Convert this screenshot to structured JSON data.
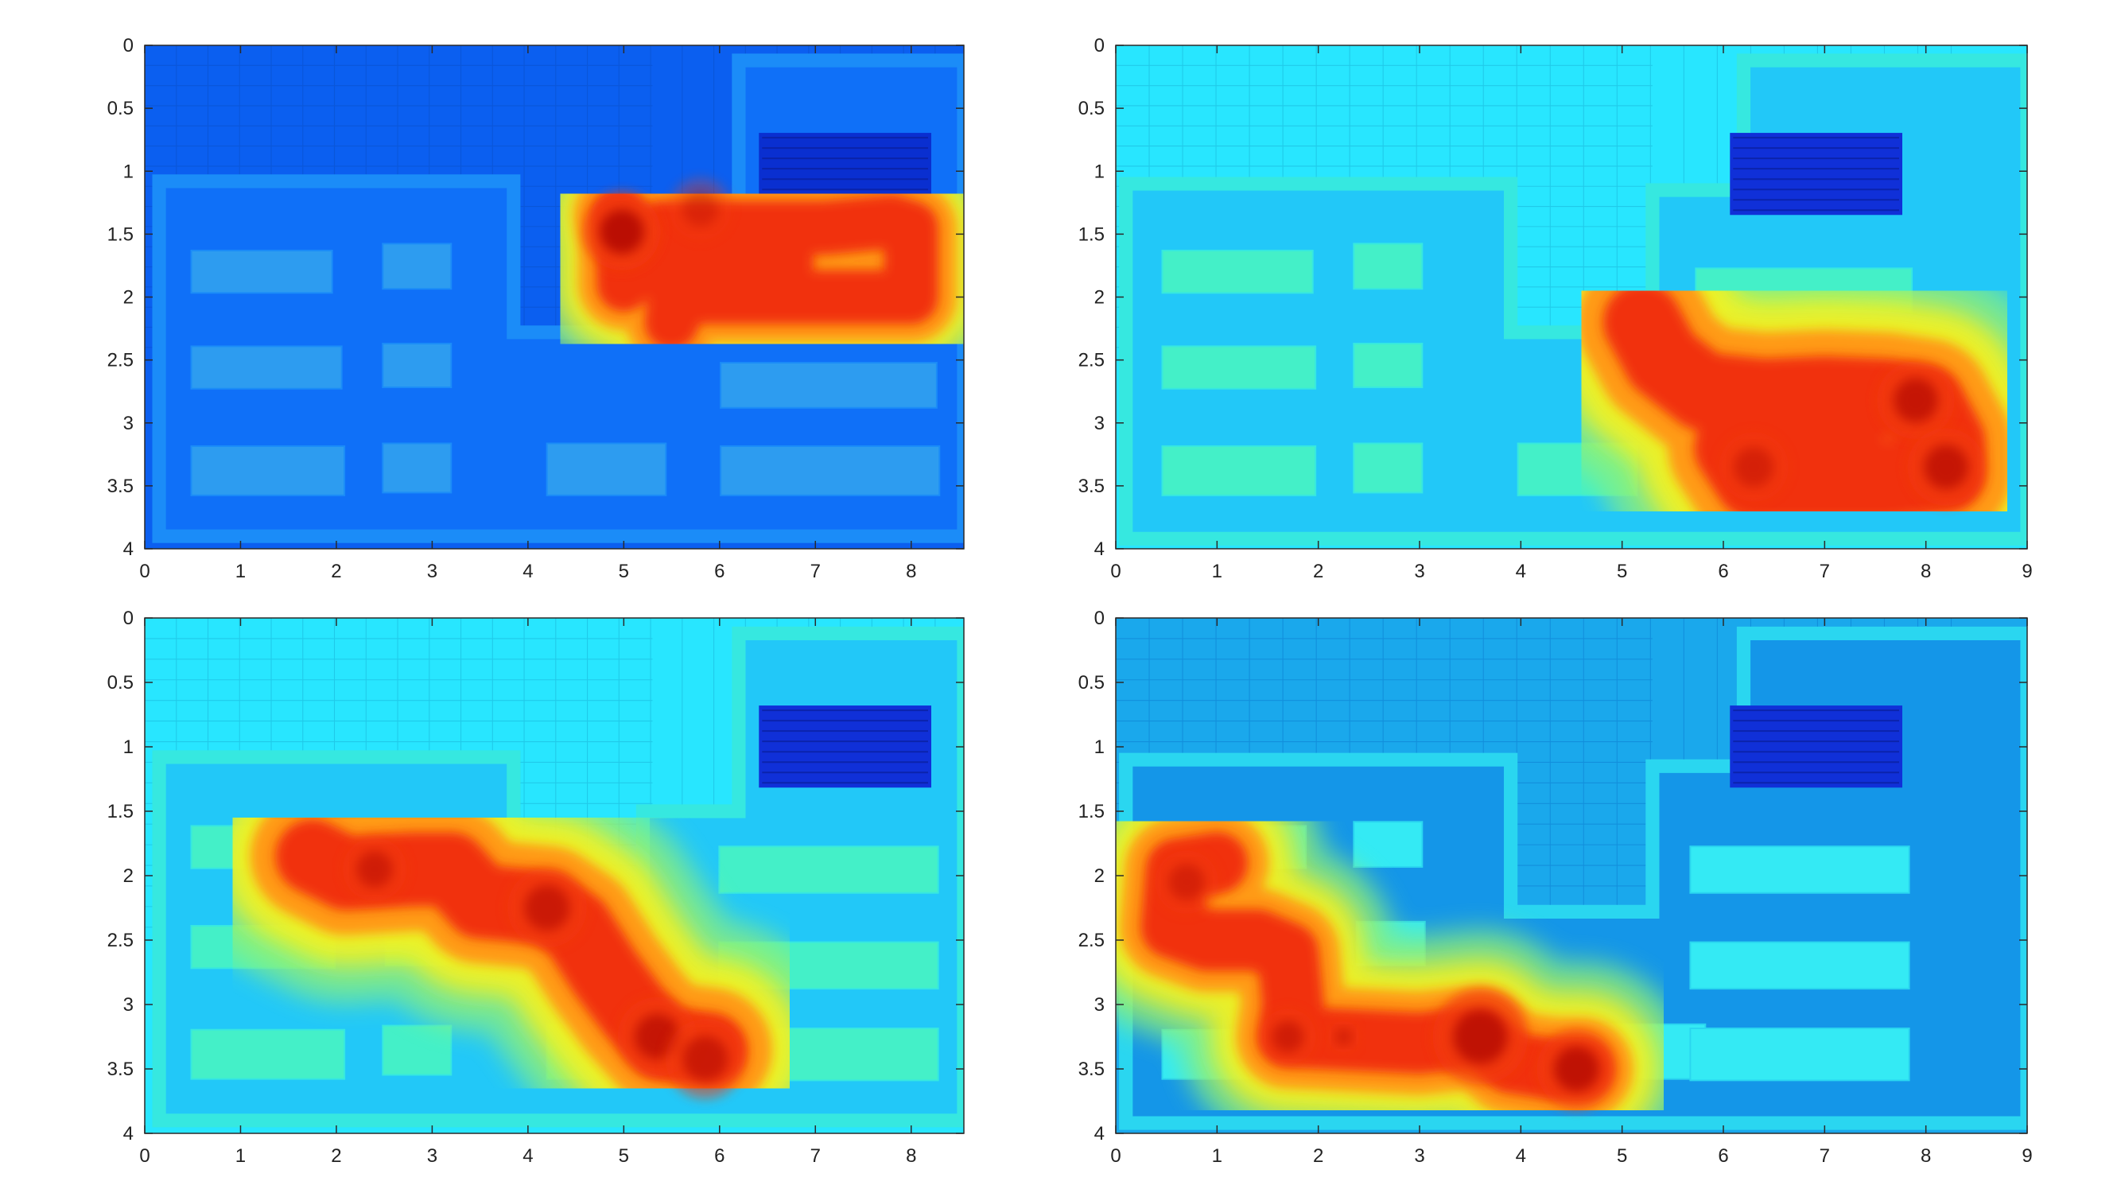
{
  "chart_data": [
    {
      "type": "heatmap",
      "panel": "top-left",
      "title": "",
      "xlabel": "",
      "ylabel": "",
      "xlim": [
        0,
        8.55
      ],
      "ylim": [
        4,
        0
      ],
      "xticks": [
        0,
        1,
        2,
        3,
        4,
        5,
        6,
        7,
        8
      ],
      "yticks": [
        0,
        0.5,
        1,
        1.5,
        2,
        2.5,
        3,
        3.5,
        4
      ],
      "xtick_labels": [
        "0",
        "1",
        "2",
        "3",
        "4",
        "5",
        "6",
        "7",
        "8"
      ],
      "ytick_labels": [
        "0",
        "0.5",
        "1",
        "1.5",
        "2",
        "2.5",
        "3",
        "3.5",
        "4"
      ],
      "theme": {
        "bg": "#0b5ff0",
        "room": "#0f70f8",
        "border": "#1b8cf8",
        "box": "#2d9cf0",
        "grid": "#0a4fc8",
        "shelf": "#0a2fd0"
      },
      "path": [
        [
          4.95,
          1.35
        ],
        [
          5.0,
          1.6
        ],
        [
          5.0,
          1.9
        ],
        [
          5.4,
          1.45
        ],
        [
          6.0,
          1.45
        ],
        [
          6.5,
          1.45
        ],
        [
          7.1,
          1.45
        ],
        [
          7.8,
          1.4
        ],
        [
          8.0,
          1.45
        ],
        [
          8.0,
          1.7
        ],
        [
          8.0,
          2.0
        ],
        [
          7.3,
          2.0
        ],
        [
          6.6,
          2.0
        ],
        [
          6.0,
          2.0
        ],
        [
          5.6,
          2.0
        ],
        [
          5.5,
          2.2
        ],
        [
          5.6,
          1.7
        ],
        [
          6.2,
          1.72
        ],
        [
          6.7,
          1.72
        ]
      ],
      "path_width": 0.09,
      "hotspots": [
        [
          4.98,
          1.48,
          0.1,
          1.0
        ],
        [
          5.8,
          1.3,
          0.08,
          0.4
        ]
      ]
    },
    {
      "type": "heatmap",
      "panel": "top-right",
      "title": "",
      "xlabel": "",
      "ylabel": "",
      "xlim": [
        0,
        9
      ],
      "ylim": [
        4,
        0
      ],
      "xticks": [
        0,
        1,
        2,
        3,
        4,
        5,
        6,
        7,
        8,
        9
      ],
      "yticks": [
        0,
        0.5,
        1,
        1.5,
        2,
        2.5,
        3,
        3.5,
        4
      ],
      "xtick_labels": [
        "0",
        "1",
        "2",
        "3",
        "4",
        "5",
        "6",
        "7",
        "8",
        "9"
      ],
      "ytick_labels": [
        "0",
        "0.5",
        "1",
        "1.5",
        "2",
        "2.5",
        "3",
        "3.5",
        "4"
      ],
      "theme": {
        "bg": "#28e6ff",
        "room": "#22c8f8",
        "border": "#36e8e0",
        "box": "#44f0c8",
        "grid": "#1ab4d8",
        "shelf": "#1030d8"
      },
      "path": [
        [
          5.2,
          2.2
        ],
        [
          5.4,
          2.5
        ],
        [
          5.8,
          2.75
        ],
        [
          6.4,
          2.8
        ],
        [
          7.0,
          2.78
        ],
        [
          7.6,
          2.8
        ],
        [
          8.0,
          2.85
        ],
        [
          8.2,
          3.15
        ],
        [
          8.2,
          3.4
        ],
        [
          7.6,
          3.45
        ],
        [
          7.0,
          3.45
        ],
        [
          6.3,
          3.45
        ],
        [
          6.1,
          3.2
        ],
        [
          6.6,
          3.15
        ],
        [
          7.2,
          3.15
        ]
      ],
      "path_width": 0.13,
      "hotspots": [
        [
          7.9,
          2.82,
          0.1,
          0.8
        ],
        [
          8.2,
          3.35,
          0.1,
          0.8
        ],
        [
          6.3,
          3.35,
          0.09,
          0.5
        ]
      ]
    },
    {
      "type": "heatmap",
      "panel": "bottom-left",
      "title": "",
      "xlabel": "",
      "ylabel": "",
      "xlim": [
        0,
        8.55
      ],
      "ylim": [
        4,
        0
      ],
      "xticks": [
        0,
        1,
        2,
        3,
        4,
        5,
        6,
        7,
        8
      ],
      "yticks": [
        0,
        0.5,
        1,
        1.5,
        2,
        2.5,
        3,
        3.5,
        4
      ],
      "xtick_labels": [
        "0",
        "1",
        "2",
        "3",
        "4",
        "5",
        "6",
        "7",
        "8"
      ],
      "ytick_labels": [
        "0",
        "0.5",
        "1",
        "1.5",
        "2",
        "2.5",
        "3",
        "3.5",
        "4"
      ],
      "theme": {
        "bg": "#28e6ff",
        "room": "#22c8f8",
        "border": "#36e8e0",
        "box": "#44f0c8",
        "grid": "#1ab4d8",
        "shelf": "#1030d8"
      },
      "path": [
        [
          1.75,
          1.85
        ],
        [
          2.1,
          1.98
        ],
        [
          2.8,
          1.95
        ],
        [
          3.2,
          1.95
        ],
        [
          3.5,
          2.2
        ],
        [
          4.2,
          2.25
        ],
        [
          4.5,
          2.4
        ],
        [
          4.8,
          2.75
        ],
        [
          5.1,
          3.05
        ],
        [
          5.4,
          3.3
        ],
        [
          5.9,
          3.35
        ]
      ],
      "path_width": 0.12,
      "hotspots": [
        [
          4.2,
          2.25,
          0.1,
          0.7
        ],
        [
          5.35,
          3.25,
          0.1,
          0.8
        ],
        [
          5.85,
          3.42,
          0.1,
          0.7
        ],
        [
          2.4,
          1.95,
          0.08,
          0.6
        ]
      ]
    },
    {
      "type": "heatmap",
      "panel": "bottom-right",
      "title": "",
      "xlabel": "",
      "ylabel": "",
      "xlim": [
        0,
        9
      ],
      "ylim": [
        4,
        0
      ],
      "xticks": [
        0,
        1,
        2,
        3,
        4,
        5,
        6,
        7,
        8,
        9
      ],
      "yticks": [
        0,
        0.5,
        1,
        1.5,
        2,
        2.5,
        3,
        3.5,
        4
      ],
      "xtick_labels": [
        "0",
        "1",
        "2",
        "3",
        "4",
        "5",
        "6",
        "7",
        "8",
        "9"
      ],
      "ytick_labels": [
        "0",
        "0.5",
        "1",
        "1.5",
        "2",
        "2.5",
        "3",
        "3.5",
        "4"
      ],
      "theme": {
        "bg": "#1aa8ec",
        "room": "#1496e8",
        "border": "#2ad6f0",
        "box": "#34eaf4",
        "grid": "#0c7cd0",
        "shelf": "#1030d8"
      },
      "path": [
        [
          1.0,
          1.9
        ],
        [
          0.6,
          1.95
        ],
        [
          0.55,
          2.4
        ],
        [
          0.9,
          2.5
        ],
        [
          1.4,
          2.5
        ],
        [
          1.7,
          2.6
        ],
        [
          1.75,
          3.0
        ],
        [
          1.7,
          3.25
        ],
        [
          3.0,
          3.3
        ],
        [
          3.6,
          3.25
        ],
        [
          3.9,
          3.45
        ],
        [
          4.3,
          3.5
        ],
        [
          4.6,
          3.5
        ]
      ],
      "path_width": 0.1,
      "hotspots": [
        [
          3.6,
          3.25,
          0.12,
          0.9
        ],
        [
          4.55,
          3.5,
          0.1,
          0.9
        ],
        [
          0.7,
          2.05,
          0.08,
          0.5
        ],
        [
          1.7,
          3.25,
          0.07,
          0.6
        ],
        [
          2.25,
          3.25,
          0.04,
          0.5
        ]
      ]
    }
  ]
}
